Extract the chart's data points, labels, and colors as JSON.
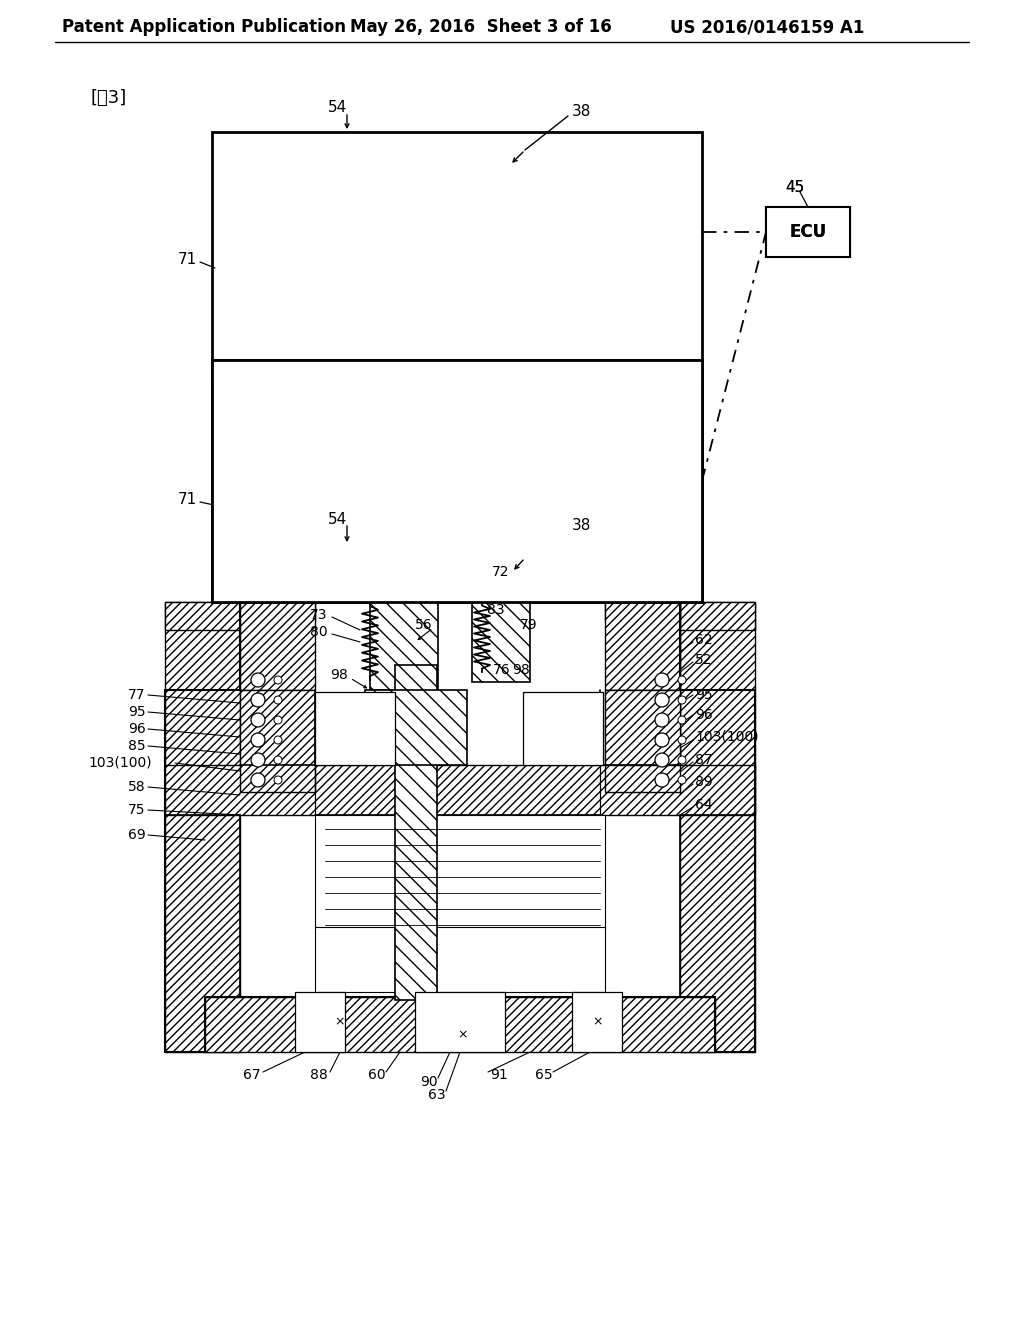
{
  "header_left": "Patent Application Publication",
  "header_mid": "May 26, 2016  Sheet 3 of 16",
  "header_right": "US 2016/0146159 A1",
  "figure_label": "[図3]",
  "bg_color": "#ffffff"
}
